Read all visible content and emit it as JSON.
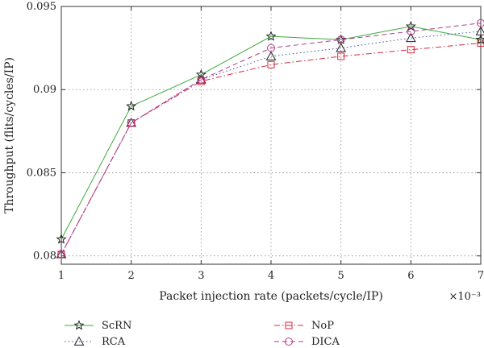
{
  "chart_data": {
    "type": "line",
    "xlabel": "Packet injection rate (packets/cycle/IP)",
    "ylabel": "Throughput (flits/cycles/IP)",
    "x_multiplier_label": "×10⁻³",
    "x": [
      1,
      2,
      3,
      4,
      5,
      6,
      7
    ],
    "xlim": [
      1,
      7
    ],
    "ylim": [
      0.0795,
      0.095
    ],
    "x_ticks": [
      1,
      2,
      3,
      4,
      5,
      6,
      7
    ],
    "y_ticks": [
      0.08,
      0.085,
      0.09,
      0.095
    ],
    "y_tick_labels": [
      "0.08",
      "0.085",
      "0.09",
      "0.095"
    ],
    "grid": true,
    "legend_position": "bottom",
    "series": [
      {
        "name": "ScRN",
        "color": "#3caa3c",
        "dash": "solid",
        "marker": "star",
        "values": [
          0.081,
          0.089,
          0.0909,
          0.0932,
          0.093,
          0.0938,
          0.093
        ]
      },
      {
        "name": "RCA",
        "color": "#3a4fb0",
        "dash": "dotted",
        "marker": "triangle",
        "values": [
          0.0801,
          0.088,
          0.0906,
          0.092,
          0.0925,
          0.0931,
          0.0935
        ]
      },
      {
        "name": "NoP",
        "color": "#d8283c",
        "dash": "dashdot",
        "marker": "square",
        "values": [
          0.0801,
          0.088,
          0.0905,
          0.0915,
          0.092,
          0.0924,
          0.0928
        ]
      },
      {
        "name": "DICA",
        "color": "#b03a8a",
        "dash": "dashed",
        "marker": "circle",
        "values": [
          0.0801,
          0.088,
          0.0906,
          0.0925,
          0.093,
          0.0935,
          0.094
        ]
      }
    ]
  }
}
